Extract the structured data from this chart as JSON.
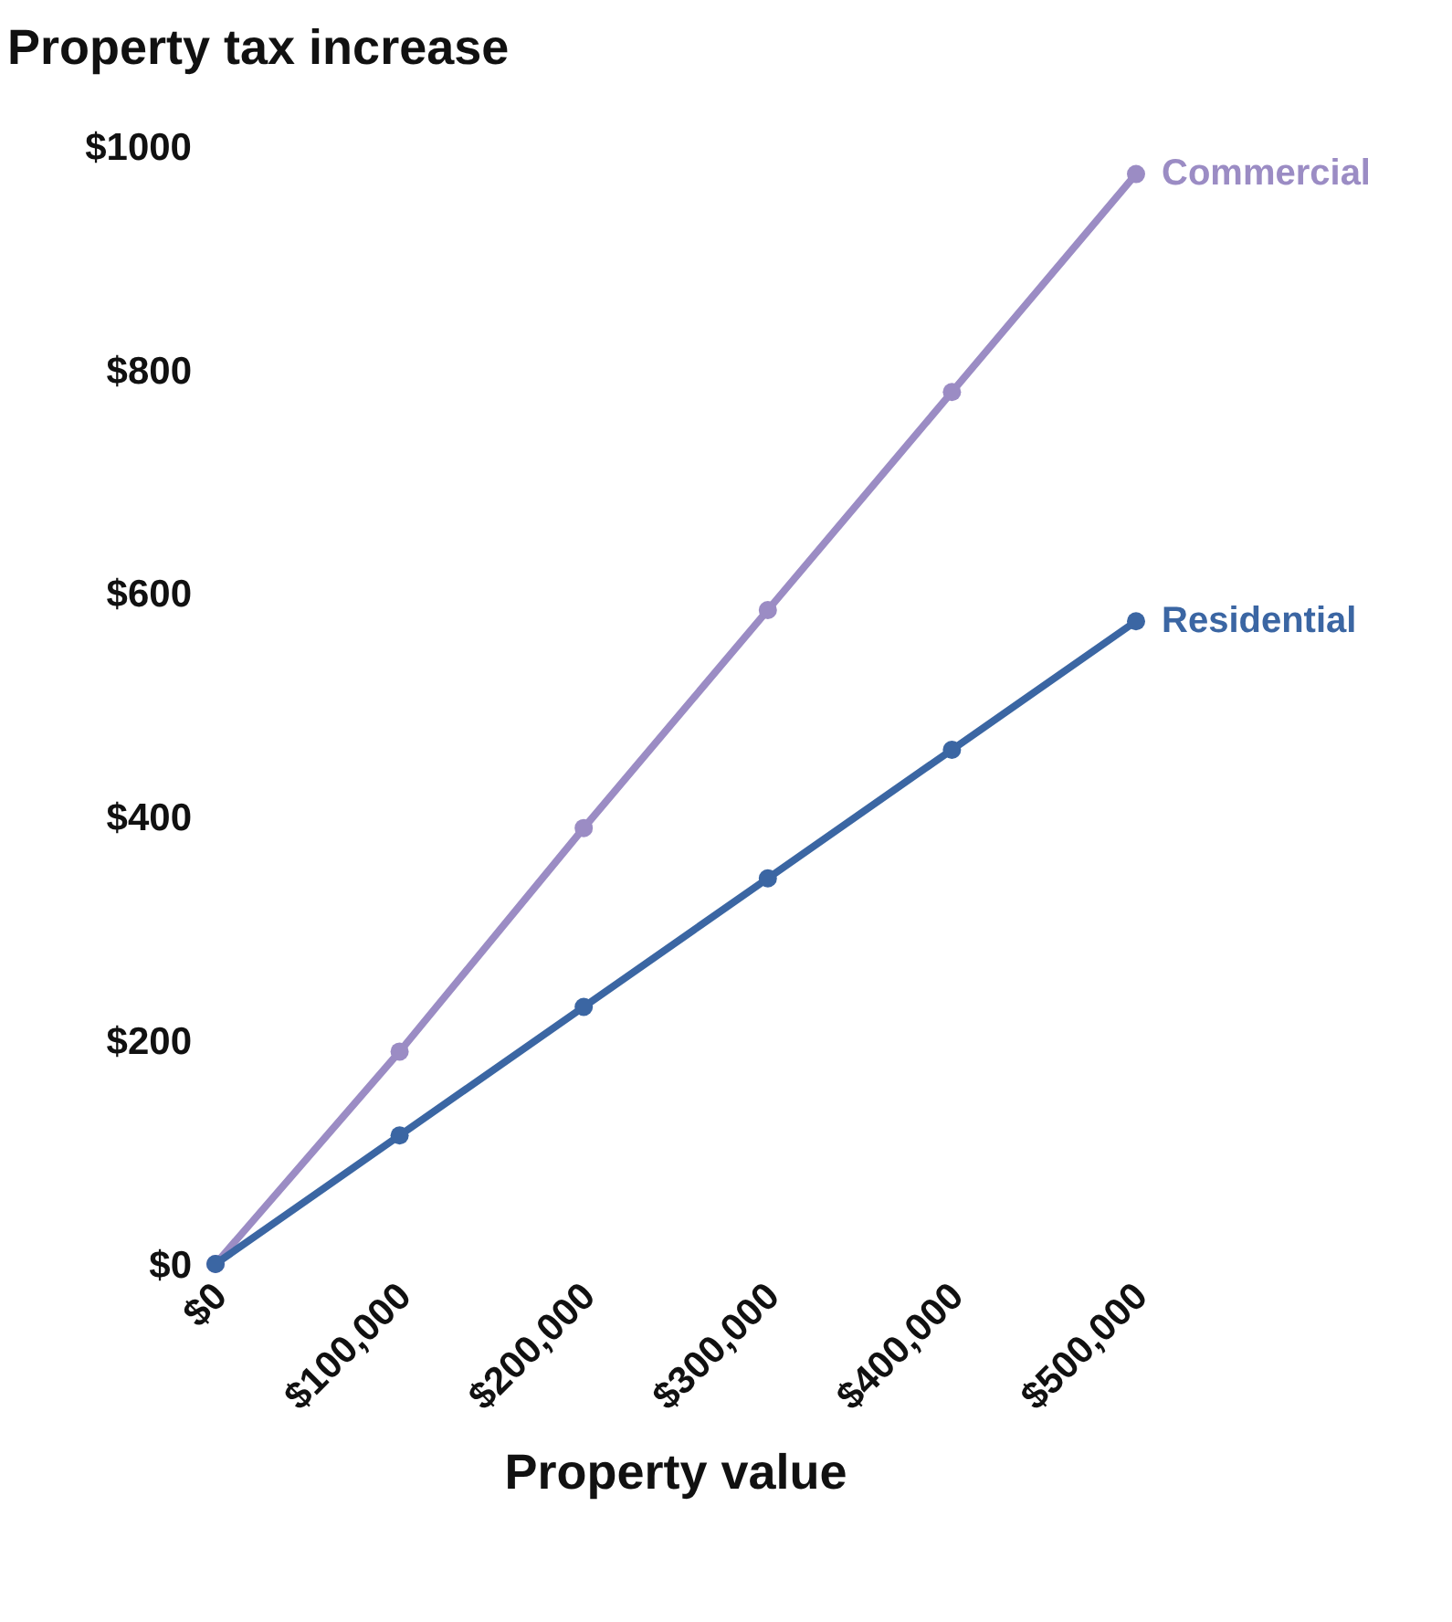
{
  "chart_data": {
    "type": "line",
    "xlabel": "Property value",
    "ylabel": "Property tax increase",
    "x": [
      0,
      100000,
      200000,
      300000,
      400000,
      500000
    ],
    "series": [
      {
        "name": "Commercial",
        "color": "#9b8cc4",
        "values": [
          0,
          190,
          390,
          585,
          780,
          975
        ]
      },
      {
        "name": "Residential",
        "color": "#3b66a3",
        "values": [
          0,
          115,
          230,
          345,
          460,
          575
        ]
      }
    ],
    "xlim": [
      0,
      500000
    ],
    "xticks": [
      {
        "value": 0,
        "label": "$0"
      },
      {
        "value": 100000,
        "label": "$100,000"
      },
      {
        "value": 200000,
        "label": "$200,000"
      },
      {
        "value": 300000,
        "label": "$300,000"
      },
      {
        "value": 400000,
        "label": "$400,000"
      },
      {
        "value": 500000,
        "label": "$500,000"
      }
    ],
    "ylim": [
      0,
      1000
    ],
    "yticks": [
      {
        "value": 0,
        "label": "$0"
      },
      {
        "value": 200,
        "label": "$200"
      },
      {
        "value": 400,
        "label": "$400"
      },
      {
        "value": 600,
        "label": "$600"
      },
      {
        "value": 800,
        "label": "$800"
      },
      {
        "value": 1000,
        "label": "$1000"
      }
    ],
    "marker": "circle",
    "line_style": "solid",
    "legend": false
  }
}
